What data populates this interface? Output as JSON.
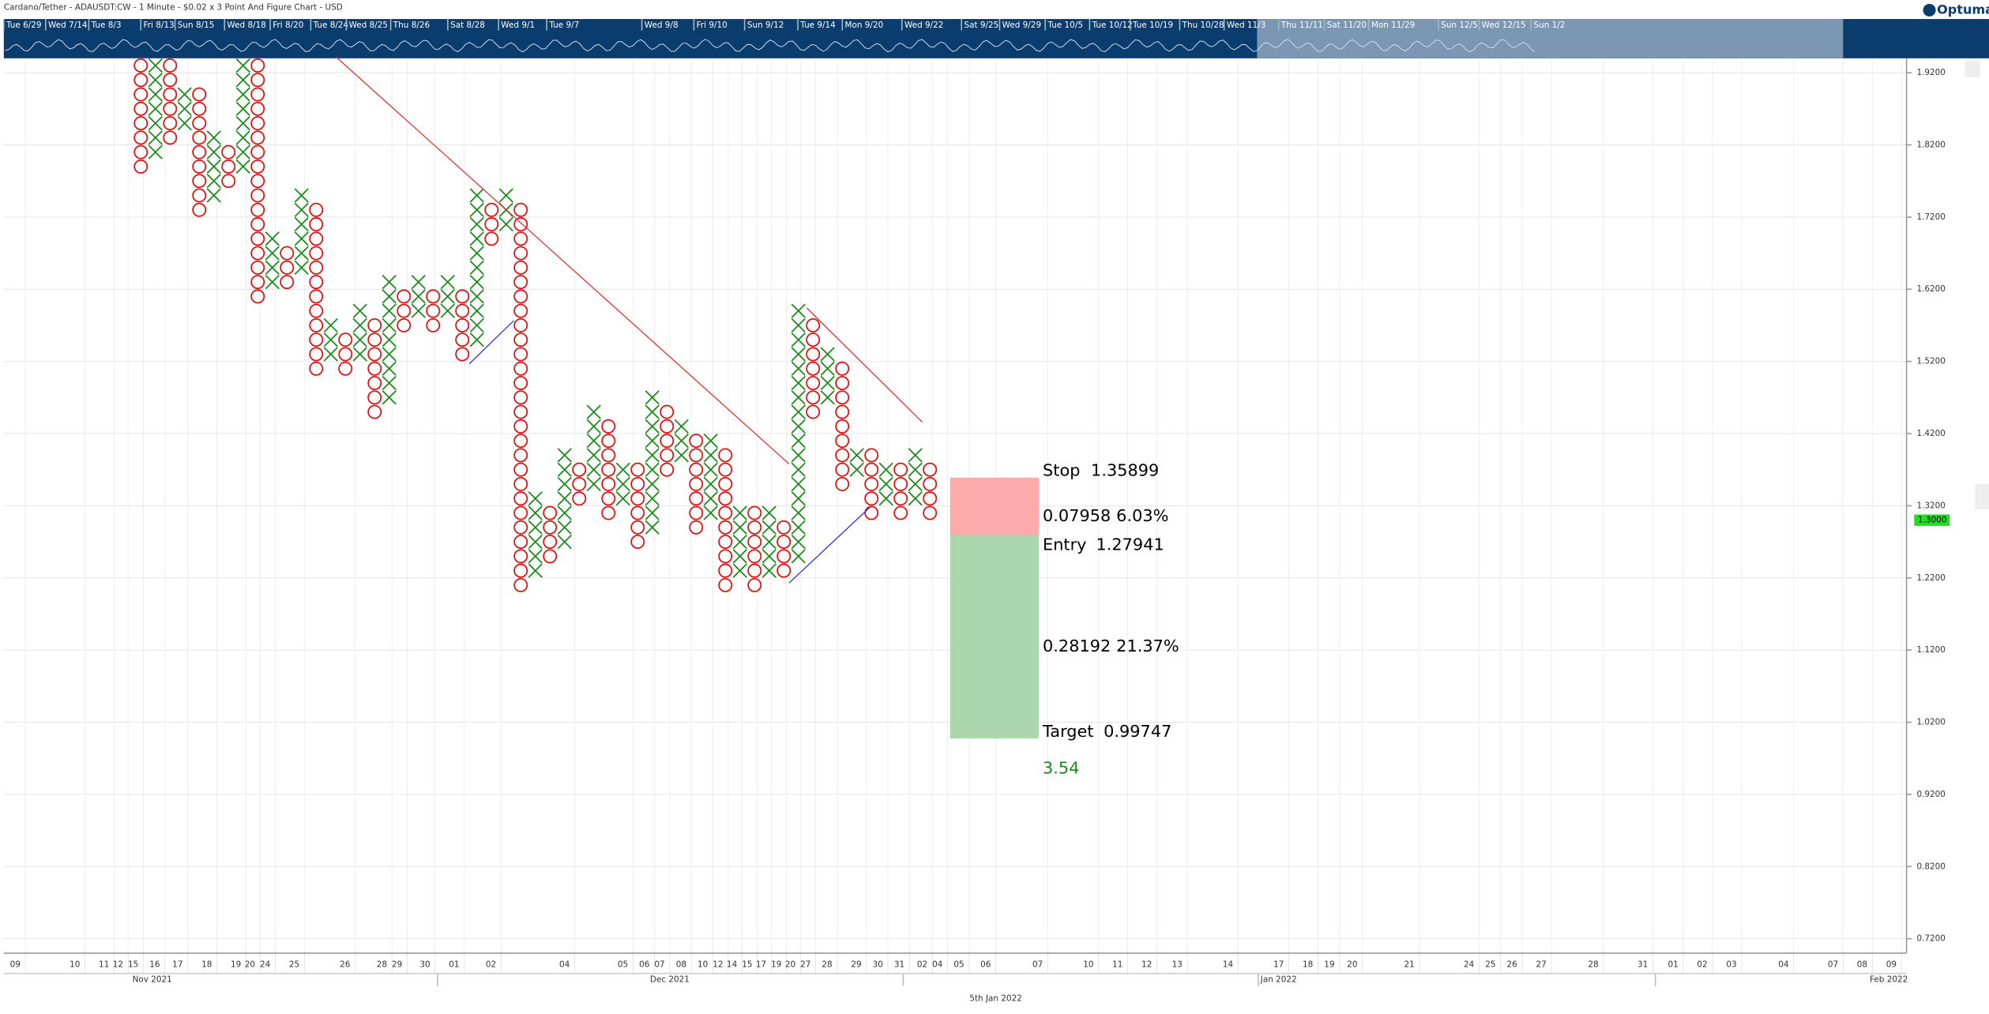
{
  "header": {
    "title": "Cardano/Tether - ADAUSDT:CW - 1 Minute - $0.02 x 3 Point And Figure Chart - USD",
    "logo": "Optuma"
  },
  "navigator": {
    "labels": [
      "Tue 6/29",
      "Wed 7/14",
      "Tue 8/3",
      "Fri 8/13",
      "Sun 8/15",
      "Wed 8/18",
      "Fri 8/20",
      "Tue 8/24",
      "Wed 8/25",
      "Thu 8/26",
      "Sat 8/28",
      "Wed 9/1",
      "Tue 9/7",
      "Wed 9/8",
      "Fri 9/10",
      "Sun 9/12",
      "Tue 9/14",
      "Mon 9/20",
      "Wed 9/22",
      "Sat 9/25",
      "Wed 9/29",
      "Tue 10/5",
      "Tue 10/12",
      "Tue 10/19",
      "Thu 10/28",
      "Wed 11/3",
      "Thu 11/11",
      "Sat 11/20",
      "Mon 11/29",
      "Sun 12/5",
      "Wed 12/15",
      "Sun 1/2"
    ]
  },
  "chart_data": {
    "type": "point_and_figure",
    "box_size": 0.02,
    "ylim": [
      0.7,
      1.94
    ],
    "yticks": [
      {
        "value": 1.92,
        "label": "1.9200"
      },
      {
        "value": 1.82,
        "label": "1.8200"
      },
      {
        "value": 1.72,
        "label": "1.7200"
      },
      {
        "value": 1.62,
        "label": "1.6200"
      },
      {
        "value": 1.52,
        "label": "1.5200"
      },
      {
        "value": 1.42,
        "label": "1.4200"
      },
      {
        "value": 1.32,
        "label": "1.3200"
      },
      {
        "value": 1.22,
        "label": "1.2200"
      },
      {
        "value": 1.12,
        "label": "1.1200"
      },
      {
        "value": 1.02,
        "label": "1.0200"
      },
      {
        "value": 0.92,
        "label": "0.9200"
      },
      {
        "value": 0.82,
        "label": "0.8200"
      },
      {
        "value": 0.72,
        "label": "0.7200"
      }
    ],
    "grid": true,
    "x_day_labels": [
      "09",
      "10",
      "11",
      "12",
      "15",
      "16",
      "17",
      "18",
      "19",
      "20",
      "24",
      "25",
      "26",
      "28",
      "29",
      "30",
      "01",
      "02",
      "04",
      "05",
      "06",
      "07",
      "08",
      "10",
      "12",
      "14",
      "15",
      "17",
      "19",
      "20",
      "27",
      "28",
      "29",
      "30",
      "31",
      "02",
      "04",
      "05",
      "06",
      "07",
      "10",
      "11",
      "12",
      "13",
      "14",
      "17",
      "18",
      "19",
      "20",
      "21",
      "24",
      "25",
      "26",
      "27",
      "28",
      "31",
      "01",
      "02",
      "03",
      "04",
      "07",
      "08",
      "09"
    ],
    "x_month_labels": [
      "Nov 2021",
      "Dec 2021",
      "Jan 2022",
      "Feb 2022"
    ],
    "x_axis_title": "5th Jan 2022",
    "colors": {
      "X": "#1a8a1a",
      "O": "#e01010"
    },
    "columns": [
      {
        "kind": "O",
        "high": 1.93,
        "low": 1.79
      },
      {
        "kind": "X",
        "high": 1.93,
        "low": 1.81
      },
      {
        "kind": "O",
        "high": 1.93,
        "low": 1.83
      },
      {
        "kind": "X",
        "high": 1.89,
        "low": 1.85
      },
      {
        "kind": "O",
        "high": 1.89,
        "low": 1.73
      },
      {
        "kind": "X",
        "high": 1.83,
        "low": 1.75
      },
      {
        "kind": "O",
        "high": 1.81,
        "low": 1.77
      },
      {
        "kind": "X",
        "high": 1.93,
        "low": 1.79
      },
      {
        "kind": "O",
        "high": 1.93,
        "low": 1.61
      },
      {
        "kind": "X",
        "high": 1.69,
        "low": 1.63
      },
      {
        "kind": "O",
        "high": 1.67,
        "low": 1.63
      },
      {
        "kind": "X",
        "high": 1.75,
        "low": 1.65
      },
      {
        "kind": "O",
        "high": 1.73,
        "low": 1.51
      },
      {
        "kind": "X",
        "high": 1.57,
        "low": 1.53
      },
      {
        "kind": "O",
        "high": 1.55,
        "low": 1.51
      },
      {
        "kind": "X",
        "high": 1.59,
        "low": 1.53
      },
      {
        "kind": "O",
        "high": 1.57,
        "low": 1.45
      },
      {
        "kind": "X",
        "high": 1.63,
        "low": 1.47
      },
      {
        "kind": "O",
        "high": 1.61,
        "low": 1.57
      },
      {
        "kind": "X",
        "high": 1.63,
        "low": 1.59
      },
      {
        "kind": "O",
        "high": 1.61,
        "low": 1.57
      },
      {
        "kind": "X",
        "high": 1.63,
        "low": 1.59
      },
      {
        "kind": "O",
        "high": 1.61,
        "low": 1.53
      },
      {
        "kind": "X",
        "high": 1.75,
        "low": 1.55
      },
      {
        "kind": "O",
        "high": 1.73,
        "low": 1.69
      },
      {
        "kind": "X",
        "high": 1.75,
        "low": 1.71
      },
      {
        "kind": "O",
        "high": 1.73,
        "low": 1.21
      },
      {
        "kind": "X",
        "high": 1.33,
        "low": 1.23
      },
      {
        "kind": "O",
        "high": 1.31,
        "low": 1.25
      },
      {
        "kind": "X",
        "high": 1.39,
        "low": 1.27
      },
      {
        "kind": "O",
        "high": 1.37,
        "low": 1.33
      },
      {
        "kind": "X",
        "high": 1.45,
        "low": 1.35
      },
      {
        "kind": "O",
        "high": 1.43,
        "low": 1.31
      },
      {
        "kind": "X",
        "high": 1.37,
        "low": 1.33
      },
      {
        "kind": "O",
        "high": 1.37,
        "low": 1.27
      },
      {
        "kind": "X",
        "high": 1.47,
        "low": 1.29
      },
      {
        "kind": "O",
        "high": 1.45,
        "low": 1.37
      },
      {
        "kind": "X",
        "high": 1.43,
        "low": 1.39
      },
      {
        "kind": "O",
        "high": 1.41,
        "low": 1.29
      },
      {
        "kind": "X",
        "high": 1.41,
        "low": 1.31
      },
      {
        "kind": "O",
        "high": 1.39,
        "low": 1.21
      },
      {
        "kind": "X",
        "high": 1.31,
        "low": 1.23
      },
      {
        "kind": "O",
        "high": 1.31,
        "low": 1.21
      },
      {
        "kind": "X",
        "high": 1.31,
        "low": 1.23
      },
      {
        "kind": "O",
        "high": 1.29,
        "low": 1.23
      },
      {
        "kind": "X",
        "high": 1.59,
        "low": 1.25
      },
      {
        "kind": "O",
        "high": 1.57,
        "low": 1.45
      },
      {
        "kind": "X",
        "high": 1.53,
        "low": 1.47
      },
      {
        "kind": "O",
        "high": 1.51,
        "low": 1.35
      },
      {
        "kind": "X",
        "high": 1.39,
        "low": 1.37
      },
      {
        "kind": "O",
        "high": 1.39,
        "low": 1.31
      },
      {
        "kind": "X",
        "high": 1.37,
        "low": 1.33
      },
      {
        "kind": "O",
        "high": 1.37,
        "low": 1.31
      },
      {
        "kind": "X",
        "high": 1.39,
        "low": 1.33
      },
      {
        "kind": "O",
        "high": 1.37,
        "low": 1.31
      }
    ],
    "last_price": {
      "value": 1.3,
      "label": "1.3000"
    },
    "position": {
      "stop": {
        "name": "Stop",
        "value": 1.35899
      },
      "entry": {
        "name": "Entry",
        "value": 1.27941
      },
      "target": {
        "name": "Target",
        "value": 0.99747
      },
      "risk": {
        "amount": 0.07958,
        "percent_label": "6.03%"
      },
      "reward": {
        "amount": 0.28192,
        "percent_label": "21.37%"
      },
      "ratio": 3.54
    }
  }
}
